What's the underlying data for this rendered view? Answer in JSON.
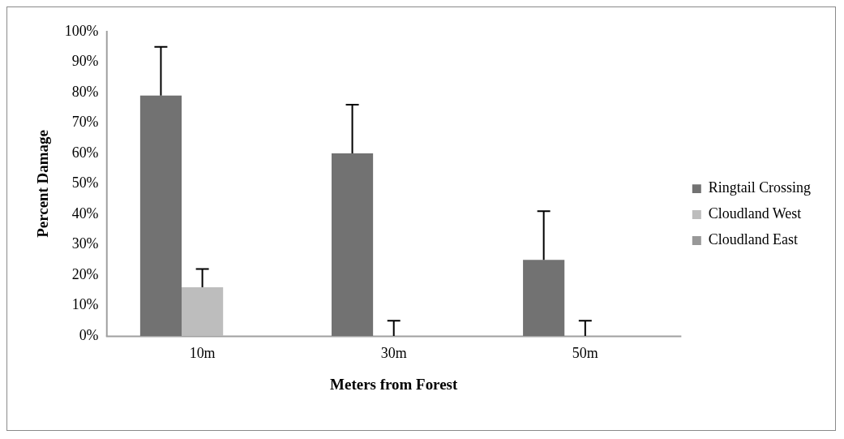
{
  "chart_data": {
    "type": "bar",
    "xlabel": "Meters from Forest",
    "ylabel": "Percent Damage",
    "categories": [
      "10m",
      "30m",
      "50m"
    ],
    "series": [
      {
        "name": "Ringtail Crossing",
        "color": "#727272",
        "values": [
          79,
          60,
          25
        ],
        "errors": [
          [
            79,
            95
          ],
          [
            60,
            76
          ],
          [
            25,
            41
          ]
        ]
      },
      {
        "name": "Cloudland West",
        "color": "#bdbdbd",
        "values": [
          16,
          0,
          0
        ],
        "errors": [
          [
            16,
            22
          ],
          [
            0,
            5
          ],
          [
            0,
            5
          ]
        ]
      },
      {
        "name": "Cloudland East",
        "color": "#989898",
        "values": [
          0,
          0,
          0
        ]
      }
    ],
    "ylim": [
      0,
      100
    ],
    "yticks": [
      {
        "value": 0,
        "label": "0%"
      },
      {
        "value": 10,
        "label": "10%"
      },
      {
        "value": 20,
        "label": "20%"
      },
      {
        "value": 30,
        "label": "30%"
      },
      {
        "value": 40,
        "label": "40%"
      },
      {
        "value": 50,
        "label": "50%"
      },
      {
        "value": 60,
        "label": "60%"
      },
      {
        "value": 70,
        "label": "70%"
      },
      {
        "value": 80,
        "label": "80%"
      },
      {
        "value": 90,
        "label": "90%"
      },
      {
        "value": 100,
        "label": "100%"
      }
    ],
    "grid": false,
    "legend": "right"
  }
}
